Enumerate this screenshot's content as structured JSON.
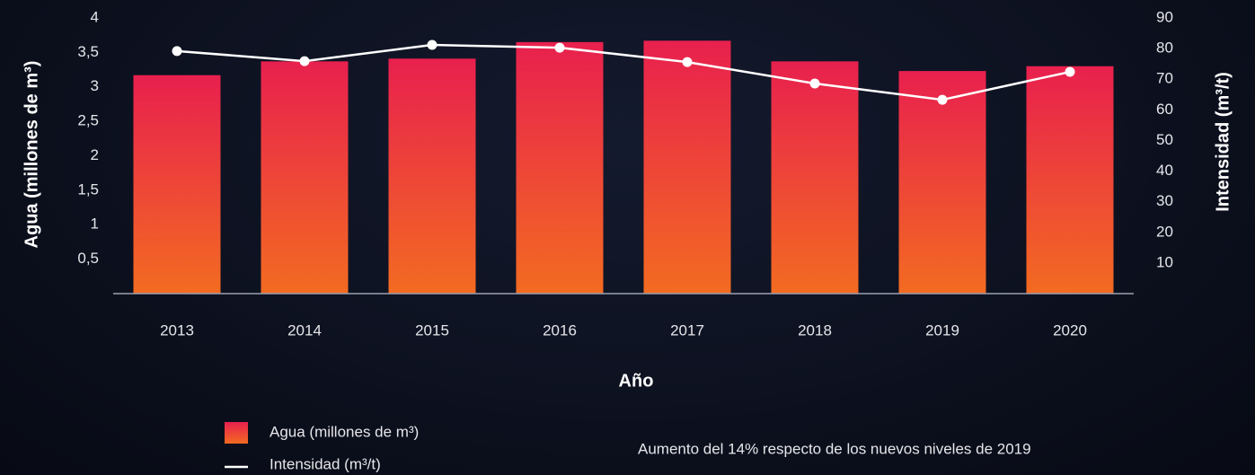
{
  "chart_data": {
    "type": "bar",
    "categories": [
      "2013",
      "2014",
      "2015",
      "2016",
      "2017",
      "2018",
      "2019",
      "2020"
    ],
    "series": [
      {
        "name": "Agua (millones de m³)",
        "type": "bar",
        "color": "#e8204e",
        "values": [
          3.17,
          3.37,
          3.41,
          3.65,
          3.67,
          3.37,
          3.23,
          3.3
        ]
      },
      {
        "name": "Intensidad (m³/t)",
        "type": "line",
        "axis": "y2",
        "color": "#ffffff",
        "values": [
          79.2,
          75.9,
          81.2,
          80.3,
          75.6,
          68.6,
          63.3,
          72.4
        ]
      }
    ],
    "xlabel": "Año",
    "ylabel": "Agua (millones de m³)",
    "y2label": "Intensidad (m³/t)",
    "ylim": [
      0,
      4
    ],
    "yticks": [
      {
        "value": 0.5,
        "label": "0,5"
      },
      1,
      {
        "value": 1.5,
        "label": "1,5"
      },
      2,
      {
        "value": 2.5,
        "label": "2,5"
      },
      3,
      {
        "value": 3.5,
        "label": "3,5"
      },
      4
    ],
    "y2lim": [
      0,
      90
    ],
    "y2ticks": [
      10,
      20,
      30,
      40,
      50,
      60,
      70,
      80,
      90
    ],
    "annotation": "Aumento del 14% respecto de los nuevos niveles de 2019"
  }
}
